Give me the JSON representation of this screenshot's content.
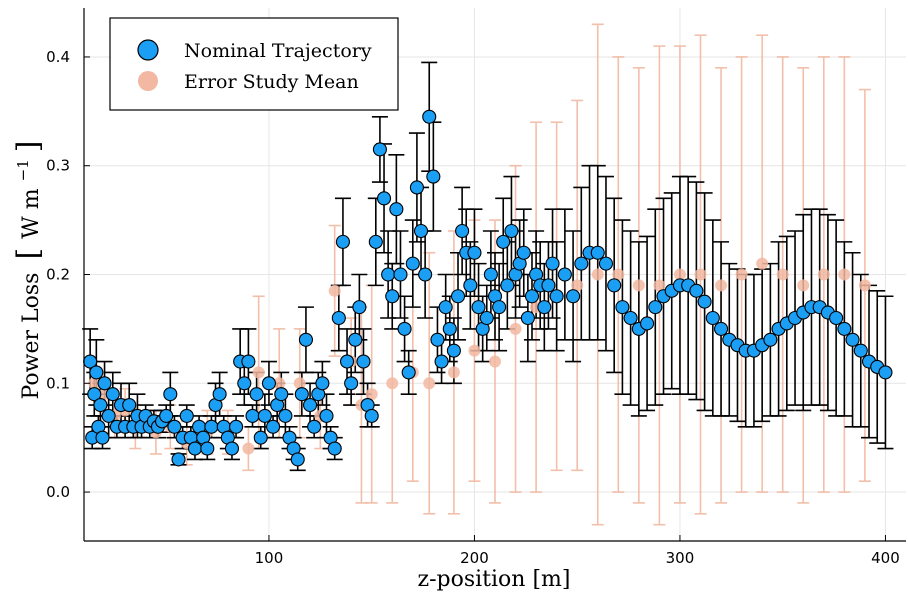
{
  "chart_data": {
    "type": "scatter",
    "xlabel": "z-position [m]",
    "ylabel_main": "Power Loss",
    "ylabel_unit": "W m",
    "ylabel_exp": "−1",
    "xlim": [
      10,
      410
    ],
    "ylim": [
      -0.045,
      0.445
    ],
    "x_ticks": [
      100,
      200,
      300,
      400
    ],
    "y_ticks": [
      0.0,
      0.1,
      0.2,
      0.3,
      0.4
    ],
    "x_tick_labels": [
      "100",
      "200",
      "300",
      "400"
    ],
    "y_tick_labels": [
      "0.0",
      "0.1",
      "0.2",
      "0.3",
      "0.4"
    ],
    "grid": true,
    "legend_position": "top-left",
    "colors": {
      "nominal": "#1a9ff5",
      "error": "#f2b8a1",
      "errorbar_nominal": "#000000",
      "errorbar_error": "#f0b49c"
    },
    "series": [
      {
        "name": "Nominal Trajectory",
        "style": "marker",
        "points": [
          [
            13,
            0.12,
            0.03
          ],
          [
            14,
            0.05,
            0.01
          ],
          [
            15,
            0.09,
            0.02
          ],
          [
            16,
            0.11,
            0.03
          ],
          [
            17,
            0.06,
            0.01
          ],
          [
            18,
            0.08,
            0.02
          ],
          [
            19,
            0.05,
            0.01
          ],
          [
            20,
            0.1,
            0.02
          ],
          [
            22,
            0.07,
            0.02
          ],
          [
            24,
            0.09,
            0.02
          ],
          [
            26,
            0.06,
            0.01
          ],
          [
            28,
            0.08,
            0.02
          ],
          [
            30,
            0.06,
            0.01
          ],
          [
            32,
            0.08,
            0.02
          ],
          [
            34,
            0.06,
            0.01
          ],
          [
            36,
            0.07,
            0.02
          ],
          [
            38,
            0.06,
            0.01
          ],
          [
            40,
            0.07,
            0.01
          ],
          [
            42,
            0.06,
            0.01
          ],
          [
            44,
            0.065,
            0.01
          ],
          [
            46,
            0.06,
            0.01
          ],
          [
            48,
            0.065,
            0.01
          ],
          [
            50,
            0.07,
            0.01
          ],
          [
            52,
            0.09,
            0.02
          ],
          [
            54,
            0.06,
            0.01
          ],
          [
            56,
            0.03,
            0.005
          ],
          [
            58,
            0.05,
            0.01
          ],
          [
            60,
            0.07,
            0.01
          ],
          [
            62,
            0.05,
            0.01
          ],
          [
            64,
            0.04,
            0.01
          ],
          [
            66,
            0.06,
            0.01
          ],
          [
            68,
            0.05,
            0.01
          ],
          [
            70,
            0.04,
            0.01
          ],
          [
            72,
            0.06,
            0.01
          ],
          [
            74,
            0.08,
            0.02
          ],
          [
            76,
            0.09,
            0.02
          ],
          [
            78,
            0.06,
            0.01
          ],
          [
            80,
            0.05,
            0.01
          ],
          [
            82,
            0.04,
            0.01
          ],
          [
            84,
            0.06,
            0.01
          ],
          [
            86,
            0.12,
            0.03
          ],
          [
            88,
            0.1,
            0.02
          ],
          [
            90,
            0.12,
            0.03
          ],
          [
            92,
            0.07,
            0.01
          ],
          [
            94,
            0.09,
            0.02
          ],
          [
            96,
            0.05,
            0.01
          ],
          [
            98,
            0.07,
            0.02
          ],
          [
            100,
            0.1,
            0.02
          ],
          [
            102,
            0.06,
            0.01
          ],
          [
            104,
            0.08,
            0.02
          ],
          [
            106,
            0.09,
            0.02
          ],
          [
            108,
            0.07,
            0.02
          ],
          [
            110,
            0.05,
            0.01
          ],
          [
            112,
            0.04,
            0.01
          ],
          [
            114,
            0.03,
            0.01
          ],
          [
            116,
            0.09,
            0.02
          ],
          [
            118,
            0.14,
            0.03
          ],
          [
            120,
            0.08,
            0.02
          ],
          [
            122,
            0.06,
            0.01
          ],
          [
            124,
            0.09,
            0.02
          ],
          [
            126,
            0.1,
            0.02
          ],
          [
            128,
            0.07,
            0.02
          ],
          [
            130,
            0.05,
            0.01
          ],
          [
            132,
            0.04,
            0.01
          ],
          [
            134,
            0.16,
            0.03
          ],
          [
            136,
            0.23,
            0.04
          ],
          [
            138,
            0.12,
            0.03
          ],
          [
            140,
            0.1,
            0.02
          ],
          [
            142,
            0.14,
            0.03
          ],
          [
            144,
            0.17,
            0.03
          ],
          [
            146,
            0.12,
            0.03
          ],
          [
            148,
            0.08,
            0.02
          ],
          [
            150,
            0.07,
            0.01
          ],
          [
            152,
            0.23,
            0.04
          ],
          [
            154,
            0.315,
            0.03
          ],
          [
            156,
            0.27,
            0.05
          ],
          [
            158,
            0.2,
            0.04
          ],
          [
            160,
            0.18,
            0.03
          ],
          [
            162,
            0.26,
            0.05
          ],
          [
            164,
            0.2,
            0.04
          ],
          [
            166,
            0.15,
            0.03
          ],
          [
            168,
            0.11,
            0.02
          ],
          [
            170,
            0.21,
            0.04
          ],
          [
            172,
            0.28,
            0.05
          ],
          [
            174,
            0.24,
            0.04
          ],
          [
            176,
            0.2,
            0.04
          ],
          [
            178,
            0.345,
            0.05
          ],
          [
            180,
            0.29,
            0.05
          ],
          [
            182,
            0.14,
            0.03
          ],
          [
            184,
            0.12,
            0.02
          ],
          [
            186,
            0.17,
            0.03
          ],
          [
            188,
            0.15,
            0.03
          ],
          [
            190,
            0.13,
            0.03
          ],
          [
            192,
            0.18,
            0.04
          ],
          [
            194,
            0.24,
            0.04
          ],
          [
            196,
            0.22,
            0.04
          ],
          [
            198,
            0.19,
            0.04
          ],
          [
            200,
            0.22,
            0.04
          ],
          [
            202,
            0.17,
            0.04
          ],
          [
            204,
            0.15,
            0.03
          ],
          [
            206,
            0.16,
            0.03
          ],
          [
            208,
            0.2,
            0.04
          ],
          [
            210,
            0.18,
            0.04
          ],
          [
            212,
            0.17,
            0.04
          ],
          [
            214,
            0.23,
            0.04
          ],
          [
            216,
            0.19,
            0.04
          ],
          [
            218,
            0.24,
            0.05
          ],
          [
            220,
            0.2,
            0.04
          ],
          [
            222,
            0.21,
            0.04
          ],
          [
            224,
            0.22,
            0.04
          ],
          [
            226,
            0.16,
            0.04
          ],
          [
            228,
            0.18,
            0.04
          ],
          [
            230,
            0.2,
            0.04
          ],
          [
            232,
            0.19,
            0.04
          ],
          [
            234,
            0.17,
            0.04
          ],
          [
            236,
            0.19,
            0.04
          ],
          [
            238,
            0.21,
            0.05
          ],
          [
            240,
            0.18,
            0.05
          ],
          [
            244,
            0.2,
            0.06
          ],
          [
            248,
            0.18,
            0.06
          ],
          [
            252,
            0.21,
            0.07
          ],
          [
            256,
            0.22,
            0.08
          ],
          [
            260,
            0.22,
            0.08
          ],
          [
            264,
            0.21,
            0.08
          ],
          [
            268,
            0.19,
            0.08
          ],
          [
            272,
            0.17,
            0.08
          ],
          [
            276,
            0.16,
            0.08
          ],
          [
            280,
            0.15,
            0.08
          ],
          [
            284,
            0.155,
            0.08
          ],
          [
            288,
            0.17,
            0.09
          ],
          [
            292,
            0.18,
            0.09
          ],
          [
            296,
            0.185,
            0.09
          ],
          [
            300,
            0.19,
            0.1
          ],
          [
            304,
            0.19,
            0.1
          ],
          [
            308,
            0.185,
            0.1
          ],
          [
            312,
            0.175,
            0.1
          ],
          [
            316,
            0.16,
            0.09
          ],
          [
            320,
            0.15,
            0.08
          ],
          [
            324,
            0.14,
            0.07
          ],
          [
            328,
            0.135,
            0.07
          ],
          [
            332,
            0.13,
            0.07
          ],
          [
            336,
            0.13,
            0.07
          ],
          [
            340,
            0.135,
            0.07
          ],
          [
            344,
            0.14,
            0.07
          ],
          [
            348,
            0.15,
            0.08
          ],
          [
            352,
            0.155,
            0.08
          ],
          [
            356,
            0.16,
            0.08
          ],
          [
            360,
            0.165,
            0.09
          ],
          [
            364,
            0.17,
            0.09
          ],
          [
            368,
            0.17,
            0.09
          ],
          [
            372,
            0.165,
            0.09
          ],
          [
            376,
            0.16,
            0.09
          ],
          [
            380,
            0.15,
            0.08
          ],
          [
            384,
            0.14,
            0.08
          ],
          [
            388,
            0.13,
            0.07
          ],
          [
            392,
            0.12,
            0.07
          ],
          [
            396,
            0.115,
            0.07
          ],
          [
            400,
            0.11,
            0.07
          ]
        ]
      },
      {
        "name": "Error Study Mean",
        "style": "marker-faded",
        "points": [
          [
            15,
            0.1,
            0.02
          ],
          [
            20,
            0.09,
            0.02
          ],
          [
            25,
            0.07,
            0.02
          ],
          [
            30,
            0.075,
            0.02
          ],
          [
            35,
            0.06,
            0.02
          ],
          [
            45,
            0.055,
            0.02
          ],
          [
            52,
            0.06,
            0.02
          ],
          [
            60,
            0.045,
            0.02
          ],
          [
            70,
            0.055,
            0.02
          ],
          [
            80,
            0.055,
            0.02
          ],
          [
            90,
            0.04,
            0.02
          ],
          [
            95,
            0.11,
            0.07
          ],
          [
            105,
            0.1,
            0.05
          ],
          [
            115,
            0.1,
            0.05
          ],
          [
            125,
            0.07,
            0.03
          ],
          [
            132,
            0.185,
            0.06
          ],
          [
            140,
            0.12,
            0.04
          ],
          [
            145,
            0.08,
            0.09
          ],
          [
            150,
            0.09,
            0.1
          ],
          [
            160,
            0.1,
            0.11
          ],
          [
            170,
            0.11,
            0.1
          ],
          [
            178,
            0.1,
            0.12
          ],
          [
            190,
            0.11,
            0.13
          ],
          [
            200,
            0.13,
            0.12
          ],
          [
            210,
            0.12,
            0.13
          ],
          [
            220,
            0.15,
            0.15
          ],
          [
            230,
            0.17,
            0.17
          ],
          [
            240,
            0.18,
            0.16
          ],
          [
            250,
            0.19,
            0.17
          ],
          [
            260,
            0.2,
            0.23
          ],
          [
            270,
            0.2,
            0.2
          ],
          [
            280,
            0.19,
            0.2
          ],
          [
            290,
            0.19,
            0.22
          ],
          [
            300,
            0.2,
            0.21
          ],
          [
            310,
            0.2,
            0.22
          ],
          [
            320,
            0.19,
            0.2
          ],
          [
            330,
            0.2,
            0.2
          ],
          [
            340,
            0.21,
            0.21
          ],
          [
            350,
            0.2,
            0.2
          ],
          [
            360,
            0.19,
            0.2
          ],
          [
            370,
            0.2,
            0.2
          ],
          [
            380,
            0.2,
            0.2
          ],
          [
            390,
            0.19,
            0.18
          ]
        ]
      }
    ]
  }
}
